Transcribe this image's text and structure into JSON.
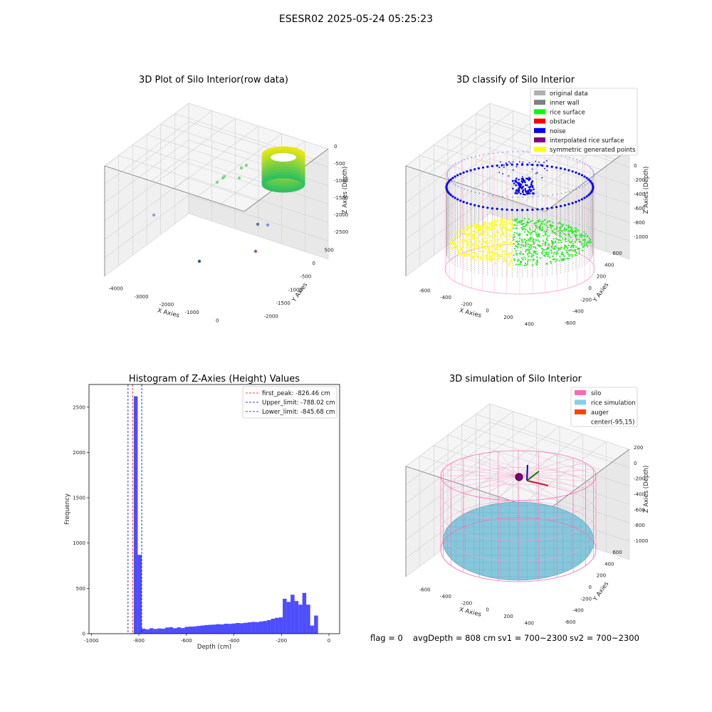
{
  "figure": {
    "suptitle": "ESESR02 2025-05-24 05:25:23",
    "status": {
      "flag": "flag = 0",
      "avg_depth": "avgDepth = 808 cm",
      "sv1": "sv1 = 700~2300",
      "sv2": "sv2 = 700~2300"
    }
  },
  "colors": {
    "hist_bar": "#4d4dff",
    "first_peak": "#ff0000",
    "limits": "#0000cc",
    "original_data": "#b0b0b0",
    "inner_wall": "#808080",
    "rice_surface": "#00ff00",
    "obstacle": "#ff0000",
    "noise": "#0000ff",
    "interpolated_rice_surface": "#800080",
    "symmetric_generated_points": "#ffff00",
    "silo": "#ff69b4",
    "rice_simulation": "#87ceeb",
    "auger": "#ff4500"
  },
  "panels": {
    "raw": {
      "title": "3D Plot of Silo Interior(row data)",
      "xlabel": "X Axies",
      "ylabel": "Y Axies",
      "zlabel": "Z Axies (Depth)",
      "x_ticks": [
        "-4000",
        "-3000",
        "-2000",
        "-1000",
        "0"
      ],
      "y_ticks": [
        "500",
        "0",
        "-500",
        "-1000",
        "-1500",
        "-2000"
      ],
      "z_ticks": [
        "0",
        "-500",
        "-1000",
        "-1500",
        "-2000",
        "-2500"
      ]
    },
    "classify": {
      "title": "3D classify of Silo Interior",
      "xlabel": "X Axies",
      "ylabel": "Y Axies",
      "zlabel": "Z Axies (Depth)",
      "x_ticks": [
        "-600",
        "-400",
        "-200",
        "0",
        "200",
        "400"
      ],
      "y_ticks": [
        "600",
        "400",
        "200",
        "0",
        "-200",
        "-400",
        "-600"
      ],
      "z_ticks": [
        "0",
        "-200",
        "-400",
        "-600",
        "-800",
        "-1000"
      ],
      "legend": [
        {
          "label": "original data",
          "color": "#b0b0b0"
        },
        {
          "label": "inner wall",
          "color": "#808080"
        },
        {
          "label": "rice surface",
          "color": "#00ff00"
        },
        {
          "label": "obstacle",
          "color": "#ff0000"
        },
        {
          "label": "noise",
          "color": "#0000ff"
        },
        {
          "label": "interpolated rice surface",
          "color": "#800080"
        },
        {
          "label": "symmetric generated points",
          "color": "#ffff00"
        }
      ]
    },
    "simulation": {
      "title": "3D simulation of Silo Interior",
      "xlabel": "X Axies",
      "ylabel": "Y Axies",
      "zlabel": "Z Axies (Depth)",
      "x_ticks": [
        "-600",
        "-400",
        "-200",
        "0",
        "200",
        "400"
      ],
      "y_ticks": [
        "600",
        "400",
        "200",
        "0",
        "-200",
        "-400",
        "-600"
      ],
      "z_ticks": [
        "200",
        "0",
        "-200",
        "-400",
        "-600",
        "-800",
        "-1000"
      ],
      "legend": [
        {
          "label": "silo",
          "color": "#ff69b4"
        },
        {
          "label": "rice simulation",
          "color": "#87ceeb"
        },
        {
          "label": "auger",
          "color": "#ff4500"
        },
        {
          "label": "center(-95,15)",
          "color": ""
        }
      ]
    }
  },
  "chart_data": {
    "type": "bar",
    "title": "Histogram of Z-Axies (Height) Values",
    "xlabel": "Depth (cm)",
    "ylabel": "Frequency",
    "xlim": [
      -1010,
      45
    ],
    "ylim": [
      0,
      2750
    ],
    "x_ticks": [
      -1000,
      -800,
      -600,
      -400,
      -200,
      0
    ],
    "y_ticks": [
      0,
      500,
      1000,
      1500,
      2000,
      2500
    ],
    "bin_width": 16.5,
    "bin_starts": [
      -838,
      -821.5,
      -805,
      -788.5,
      -772,
      -755.5,
      -739,
      -722.5,
      -706,
      -689.5,
      -673,
      -656.5,
      -640,
      -623.5,
      -607,
      -590.5,
      -574,
      -557.5,
      -541,
      -524.5,
      -508,
      -491.5,
      -475,
      -458.5,
      -442,
      -425.5,
      -409,
      -392.5,
      -376,
      -359.5,
      -343,
      -326.5,
      -310,
      -293.5,
      -277,
      -260.5,
      -244,
      -227.5,
      -211,
      -194.5,
      -178,
      -161.5,
      -145,
      -128.5,
      -112,
      -95.5,
      -79,
      -62.5,
      -46,
      -29.5,
      -13
    ],
    "values": [
      5,
      2620,
      870,
      55,
      48,
      60,
      52,
      58,
      55,
      68,
      72,
      60,
      70,
      62,
      75,
      78,
      80,
      85,
      90,
      95,
      98,
      100,
      105,
      102,
      110,
      108,
      112,
      118,
      115,
      120,
      125,
      130,
      128,
      135,
      140,
      150,
      165,
      175,
      180,
      385,
      350,
      430,
      360,
      320,
      450,
      320,
      90,
      200,
      0,
      0,
      0
    ],
    "lines": [
      {
        "name": "first_peak: -826.46 cm",
        "x": -826.46,
        "style": "dashed",
        "color": "#ff0000"
      },
      {
        "name": "Upper_limit: -788.02 cm",
        "x": -788.02,
        "style": "dashed",
        "color": "#0000cc"
      },
      {
        "name": "Lower_limit: -845.68 cm",
        "x": -845.68,
        "style": "dashed",
        "color": "#0000cc"
      }
    ],
    "legend_position": "upper right",
    "grid": false
  }
}
